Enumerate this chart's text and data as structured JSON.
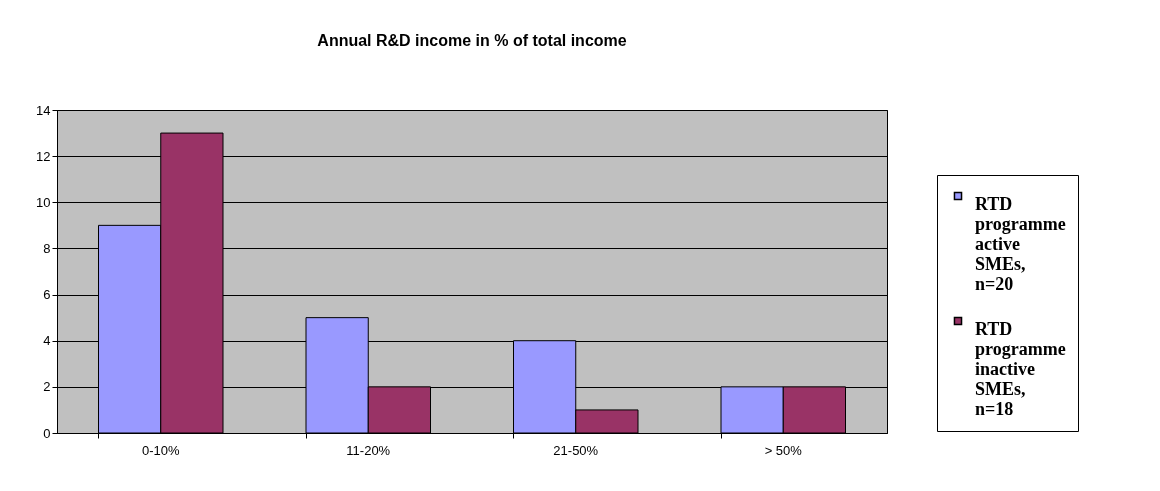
{
  "chart_data": {
    "type": "bar",
    "title": "Annual R&D income in % of total income",
    "categories": [
      "0-10%",
      "11-20%",
      "21-50%",
      "> 50%"
    ],
    "series": [
      {
        "name": "RTD programme active SMEs, n=20",
        "color": "#9999ff",
        "values": [
          9,
          5,
          4,
          2
        ]
      },
      {
        "name": "RTD programme inactive SMEs, n=18",
        "color": "#993366",
        "values": [
          13,
          2,
          1,
          2
        ]
      }
    ],
    "ylim": [
      0,
      14
    ],
    "yticks": [
      0,
      2,
      4,
      6,
      8,
      10,
      12,
      14
    ],
    "grid": "y",
    "legend": "right"
  }
}
